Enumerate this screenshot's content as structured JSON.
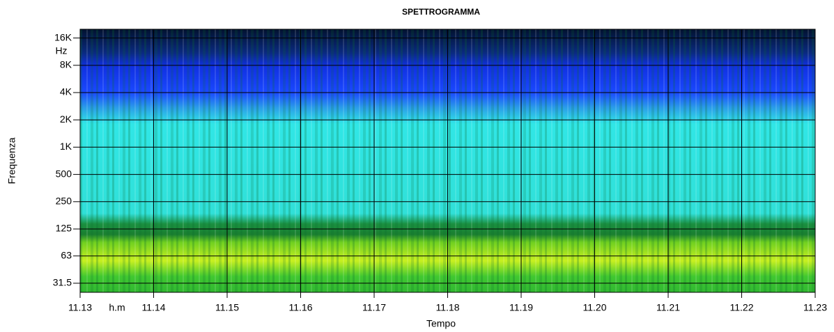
{
  "chart_data": {
    "type": "heatmap",
    "title": "SPETTROGRAMMA",
    "xlabel": "Tempo",
    "ylabel": "Frequenza",
    "x_unit": "h.m",
    "y_unit": "Hz",
    "xlim": [
      11.13,
      11.23
    ],
    "xticks": [
      11.13,
      11.14,
      11.15,
      11.16,
      11.17,
      11.18,
      11.19,
      {
        "value": 11.2,
        "label": "11.20"
      },
      11.21,
      11.22,
      11.23
    ],
    "ylim": [
      25,
      20000
    ],
    "ylog": true,
    "yticks": [
      31.5,
      63,
      125,
      250,
      500,
      {
        "value": 1000,
        "label": "1K"
      },
      {
        "value": 2000,
        "label": "2K"
      },
      {
        "value": 4000,
        "label": "4K"
      },
      {
        "value": 8000,
        "label": "8K"
      },
      {
        "value": 16000,
        "label": "16K"
      }
    ],
    "grid": true
  }
}
